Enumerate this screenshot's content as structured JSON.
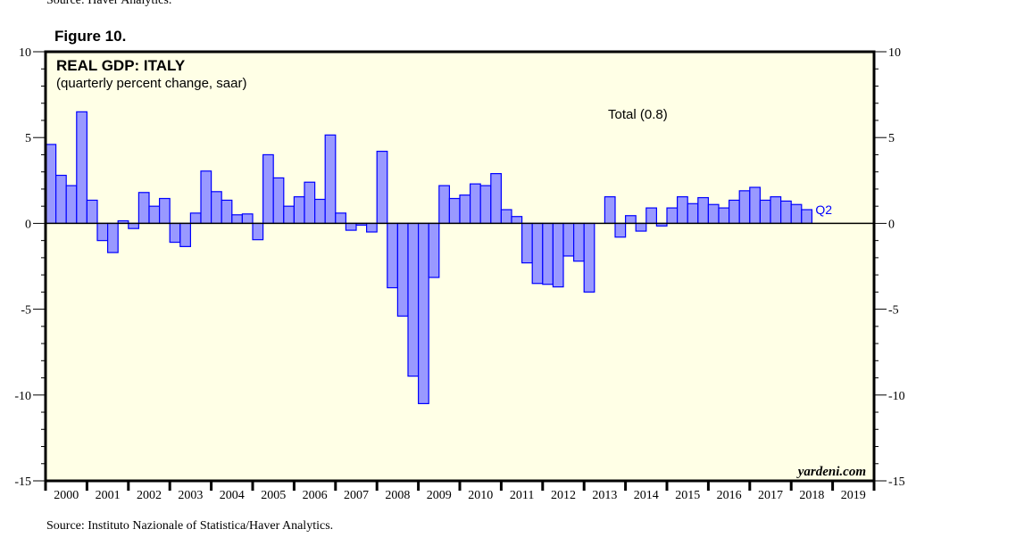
{
  "top_cut_text": "Source: Haver Analytics.",
  "figure_label": "Figure 10.",
  "source": "Source: Instituto Nazionale of Statistica/Haver Analytics.",
  "watermark": "yardeni.com",
  "colors": {
    "bar_fill": "#9999ff",
    "bar_stroke": "#0000ff",
    "plot_bg": "#ffffe6",
    "label_blue": "#0000ff"
  },
  "chart_data": {
    "type": "bar",
    "title": "REAL GDP: ITALY",
    "subtitle": "(quarterly percent change, saar)",
    "annotation": "Total (0.8)",
    "last_label": "Q2",
    "ylim": [
      -15,
      10
    ],
    "yticks": [
      10,
      5,
      0,
      -5,
      -10,
      -15
    ],
    "x_tick_labels": [
      "2000",
      "2001",
      "2002",
      "2003",
      "2004",
      "2005",
      "2006",
      "2007",
      "2008",
      "2009",
      "2010",
      "2011",
      "2012",
      "2013",
      "2014",
      "2015",
      "2016",
      "2017",
      "2018",
      "2019"
    ],
    "start": "2000 Q1",
    "frequency": "quarterly",
    "values": [
      4.6,
      2.8,
      2.2,
      6.5,
      1.35,
      -1.0,
      -1.7,
      0.15,
      -0.3,
      1.8,
      1.0,
      1.45,
      -1.1,
      -1.35,
      0.6,
      3.05,
      1.85,
      1.35,
      0.5,
      0.55,
      -0.95,
      4.0,
      2.65,
      1.0,
      1.55,
      2.4,
      1.4,
      5.15,
      0.6,
      -0.4,
      -0.1,
      -0.5,
      4.2,
      -3.75,
      -5.4,
      -8.9,
      -10.5,
      -3.15,
      2.2,
      1.45,
      1.65,
      2.3,
      2.2,
      2.9,
      0.8,
      0.4,
      -2.3,
      -3.5,
      -3.55,
      -3.7,
      -1.9,
      -2.2,
      -4.0,
      0.0,
      1.55,
      -0.8,
      0.45,
      -0.45,
      0.9,
      -0.15,
      0.9,
      1.55,
      1.15,
      1.5,
      1.1,
      0.9,
      1.35,
      1.9,
      2.1,
      1.35,
      1.55,
      1.3,
      1.1,
      0.8
    ],
    "grid": false,
    "legend": "none"
  }
}
